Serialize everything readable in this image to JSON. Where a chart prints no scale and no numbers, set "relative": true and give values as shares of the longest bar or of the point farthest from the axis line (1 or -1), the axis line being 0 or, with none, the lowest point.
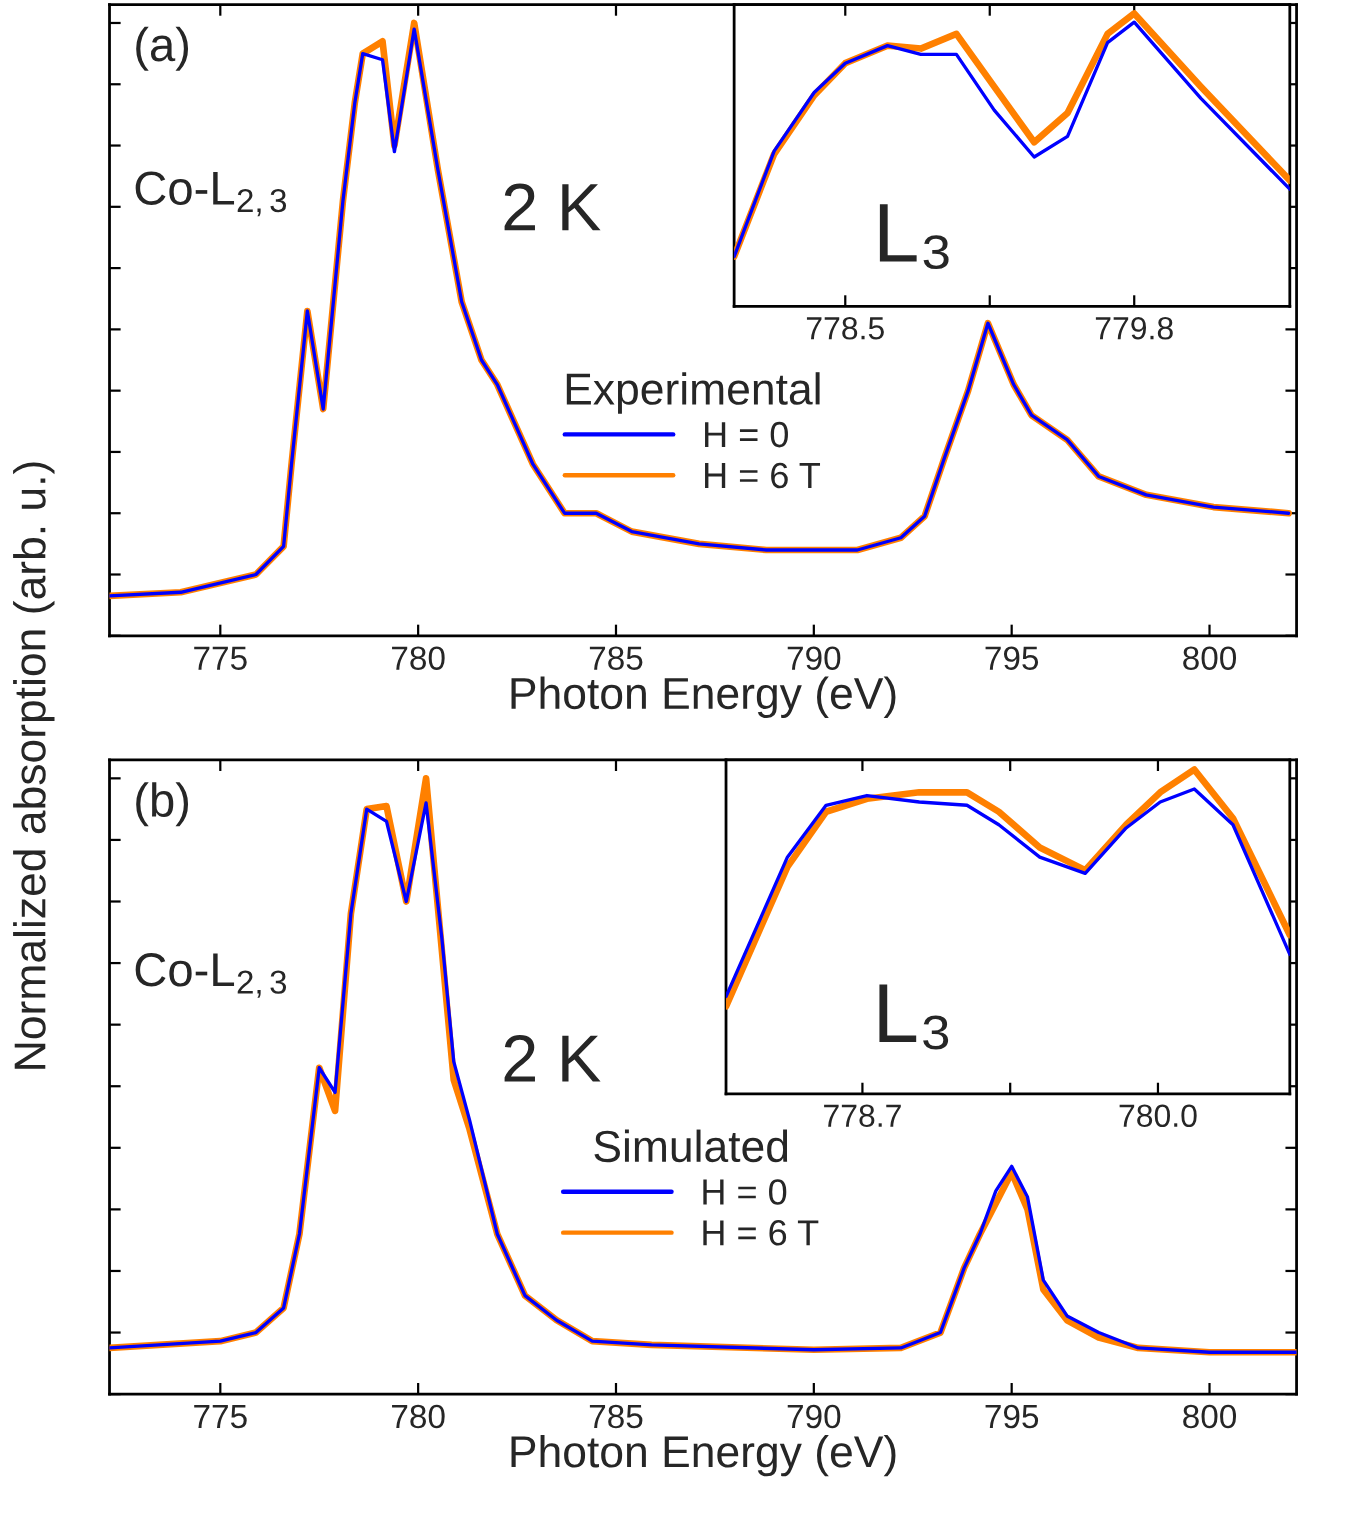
{
  "chart_data": [
    {
      "type": "line",
      "relative": true,
      "xlabel": "Photon Energy (eV)",
      "ylabel": "Normalized absorption (arb. u.)",
      "xlim": [
        772.2,
        802.2
      ],
      "xticks": [
        775,
        780,
        785,
        790,
        795,
        800
      ],
      "tick_labels": "x",
      "legend": "right",
      "legend_title": "Experimental",
      "annotations": [
        "(a)",
        "Co-L$_{2,3}$",
        "2 K"
      ],
      "x": [
        772.2,
        774,
        775.9,
        776.6,
        776.8,
        777.2,
        777.6,
        778.1,
        778.4,
        778.6,
        779.1,
        779.4,
        779.9,
        780.5,
        781.1,
        781.6,
        782.0,
        782.9,
        783.7,
        784.5,
        785.4,
        787.1,
        788.8,
        791.1,
        792.2,
        792.8,
        793.3,
        793.9,
        794.4,
        795.05,
        795.5,
        796.4,
        797.2,
        798.4,
        800.1,
        802.0
      ],
      "series": [
        {
          "name": "H = 0",
          "color": "#0000ff",
          "values": [
            0.065,
            0.071,
            0.1,
            0.146,
            0.28,
            0.53,
            0.37,
            0.71,
            0.87,
            0.95,
            0.94,
            0.79,
            0.99,
            0.76,
            0.545,
            0.45,
            0.41,
            0.28,
            0.2,
            0.2,
            0.17,
            0.15,
            0.14,
            0.14,
            0.16,
            0.195,
            0.29,
            0.4,
            0.51,
            0.41,
            0.36,
            0.32,
            0.26,
            0.23,
            0.21,
            0.2
          ]
        },
        {
          "name": "H = 6 T",
          "color": "#ff8000",
          "values": [
            0.065,
            0.071,
            0.1,
            0.146,
            0.28,
            0.53,
            0.37,
            0.71,
            0.87,
            0.95,
            0.97,
            0.8,
            1.0,
            0.76,
            0.545,
            0.45,
            0.41,
            0.28,
            0.2,
            0.2,
            0.17,
            0.15,
            0.14,
            0.14,
            0.16,
            0.195,
            0.29,
            0.4,
            0.51,
            0.41,
            0.36,
            0.32,
            0.26,
            0.23,
            0.21,
            0.2
          ]
        }
      ]
    },
    {
      "type": "line",
      "relative": true,
      "xlim": [
        778.0,
        780.5
      ],
      "xticks": [
        778.5,
        {
          "value": 779.15,
          "label": null
        },
        779.8
      ],
      "tick_labels": "x",
      "annotations": [
        "L₃"
      ],
      "x": [
        778.0,
        778.18,
        778.36,
        778.5,
        778.69,
        778.84,
        779.0,
        779.17,
        779.35,
        779.5,
        779.68,
        779.8,
        780.1,
        780.5
      ],
      "series": [
        {
          "color": "#0000ff",
          "values": [
            0.17,
            0.53,
            0.73,
            0.83,
            0.89,
            0.86,
            0.86,
            0.67,
            0.51,
            0.58,
            0.9,
            0.97,
            0.71,
            0.4
          ]
        },
        {
          "color": "#ff8000",
          "values": [
            0.17,
            0.52,
            0.72,
            0.83,
            0.89,
            0.88,
            0.93,
            0.75,
            0.56,
            0.66,
            0.93,
            1.0,
            0.75,
            0.43
          ]
        }
      ]
    },
    {
      "type": "line",
      "relative": true,
      "xlabel": "Photon Energy (eV)",
      "xlim": [
        772.2,
        802.2
      ],
      "xticks": [
        775,
        780,
        785,
        790,
        795,
        800
      ],
      "tick_labels": "x",
      "legend": "right",
      "legend_title": "Simulated",
      "annotations": [
        "(b)",
        "Co-L$_{2,3}$",
        "2 K"
      ],
      "x": [
        772.2,
        775.0,
        775.9,
        776.6,
        777.0,
        777.5,
        777.9,
        778.3,
        778.7,
        779.2,
        779.7,
        780.2,
        780.6,
        780.9,
        781.3,
        782.0,
        782.7,
        783.5,
        784.4,
        785.9,
        790.0,
        792.2,
        793.2,
        793.8,
        794.2,
        794.6,
        795.0,
        795.4,
        795.8,
        796.4,
        797.2,
        798.2,
        800.0,
        802.2
      ],
      "series": [
        {
          "name": "H = 0",
          "color": "#0000ff",
          "values": [
            0.075,
            0.086,
            0.1,
            0.14,
            0.26,
            0.53,
            0.49,
            0.78,
            0.95,
            0.93,
            0.8,
            0.96,
            0.74,
            0.54,
            0.445,
            0.26,
            0.16,
            0.12,
            0.086,
            0.08,
            0.072,
            0.075,
            0.1,
            0.205,
            0.26,
            0.33,
            0.37,
            0.32,
            0.185,
            0.127,
            0.1,
            0.075,
            0.068,
            0.068
          ]
        },
        {
          "name": "H = 6 T",
          "color": "#ff8000",
          "values": [
            0.075,
            0.086,
            0.1,
            0.14,
            0.26,
            0.53,
            0.46,
            0.78,
            0.95,
            0.955,
            0.8,
            1.0,
            0.72,
            0.51,
            0.43,
            0.26,
            0.16,
            0.12,
            0.086,
            0.08,
            0.072,
            0.075,
            0.1,
            0.205,
            0.26,
            0.31,
            0.36,
            0.3,
            0.17,
            0.12,
            0.092,
            0.075,
            0.068,
            0.068
          ]
        }
      ]
    },
    {
      "type": "line",
      "relative": true,
      "xlim": [
        778.1,
        780.58
      ],
      "xticks": [
        778.7,
        {
          "value": 779.35,
          "label": null
        },
        {
          "value": 780.0,
          "label": "780.0"
        }
      ],
      "tick_labels": "x",
      "annotations": [
        "L₃"
      ],
      "x": [
        778.1,
        778.37,
        778.54,
        778.72,
        778.95,
        779.16,
        779.3,
        779.48,
        779.68,
        779.86,
        780.01,
        780.16,
        780.33,
        780.58
      ],
      "series": [
        {
          "color": "#0000ff",
          "values": [
            0.3,
            0.73,
            0.89,
            0.92,
            0.9,
            0.89,
            0.83,
            0.73,
            0.68,
            0.82,
            0.9,
            0.94,
            0.83,
            0.43
          ]
        },
        {
          "color": "#ff8000",
          "values": [
            0.27,
            0.7,
            0.87,
            0.91,
            0.93,
            0.93,
            0.87,
            0.76,
            0.69,
            0.83,
            0.93,
            1.0,
            0.85,
            0.49
          ]
        }
      ]
    }
  ]
}
